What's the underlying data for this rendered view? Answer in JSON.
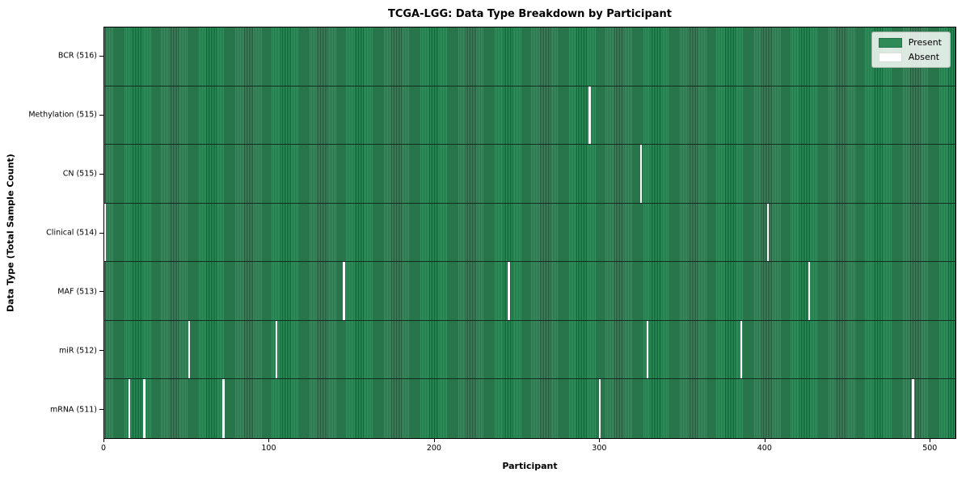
{
  "title": "TCGA-LGG: Data Type Breakdown by Participant",
  "axes": {
    "x_label": "Participant",
    "y_label": "Data Type (Total Sample Count)"
  },
  "legend": {
    "present": "Present",
    "absent": "Absent"
  },
  "colors": {
    "present": "#2e8b57",
    "present_stripe_dark": "#1c5737",
    "absent": "#ffffff",
    "row_divider": "#122e1e",
    "legend_background": "#fafcfa"
  },
  "chart_data": {
    "type": "heatmap",
    "title": "TCGA-LGG: Data Type Breakdown by Participant",
    "xlabel": "Participant",
    "ylabel": "Data Type (Total Sample Count)",
    "x_ticks": [
      0,
      100,
      200,
      300,
      400,
      500
    ],
    "x_range": [
      0,
      516
    ],
    "n_participants": 516,
    "grid": false,
    "legend_position": "upper right",
    "legend_entries": [
      {
        "label": "Present",
        "color": "#2e8b57"
      },
      {
        "label": "Absent",
        "color": "#ffffff"
      }
    ],
    "rows": [
      {
        "label": "BCR (516)",
        "data_type": "BCR",
        "present_count": 516,
        "absent_count": 0,
        "absent_participants": []
      },
      {
        "label": "Methylation (515)",
        "data_type": "Methylation",
        "present_count": 515,
        "absent_count": 1,
        "absent_participants": [
          294
        ]
      },
      {
        "label": "CN (515)",
        "data_type": "CN",
        "present_count": 515,
        "absent_count": 1,
        "absent_participants": [
          325
        ]
      },
      {
        "label": "Clinical (514)",
        "data_type": "Clinical",
        "present_count": 514,
        "absent_count": 2,
        "absent_participants": [
          0,
          402
        ]
      },
      {
        "label": "MAF (513)",
        "data_type": "MAF",
        "present_count": 513,
        "absent_count": 3,
        "absent_participants": [
          145,
          245,
          427
        ]
      },
      {
        "label": "miR (512)",
        "data_type": "miR",
        "present_count": 512,
        "absent_count": 4,
        "absent_participants": [
          51,
          104,
          329,
          386
        ]
      },
      {
        "label": "mRNA (511)",
        "data_type": "mRNA",
        "present_count": 511,
        "absent_count": 5,
        "absent_participants": [
          15,
          24,
          72,
          300,
          490
        ]
      }
    ]
  }
}
